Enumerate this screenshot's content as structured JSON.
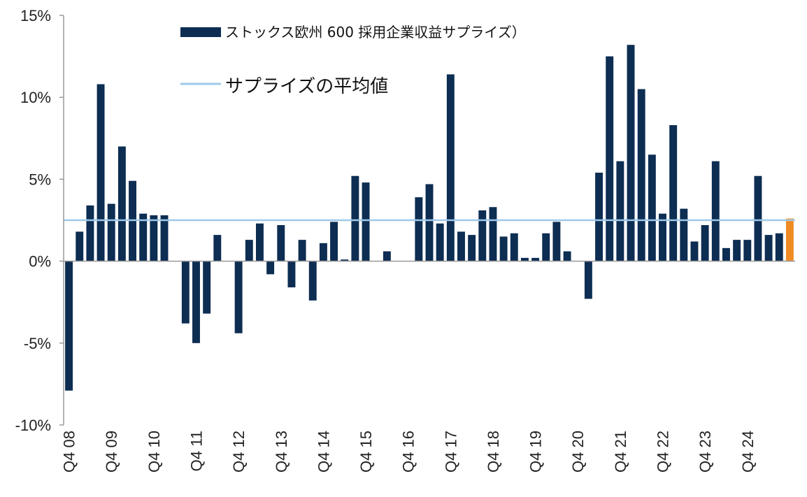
{
  "chart_data": {
    "type": "bar",
    "title": "",
    "xlabel": "",
    "ylabel": "",
    "ylim": [
      -10,
      15
    ],
    "yticks": [
      15,
      10,
      5,
      0,
      -5,
      -10
    ],
    "ytick_labels": [
      "15%",
      "10%",
      "5%",
      "0%",
      "-5%",
      "-10%"
    ],
    "xtick_labels": [
      "Q4 08",
      "Q4 09",
      "Q4 10",
      "Q4 11",
      "Q4 12",
      "Q4 13",
      "Q4 14",
      "Q4 15",
      "Q4 16",
      "Q4 17",
      "Q4 18",
      "Q4 19",
      "Q4 20",
      "Q4 21",
      "Q4 22",
      "Q4 23",
      "Q4 24"
    ],
    "xtick_positions": [
      0,
      4,
      8,
      12,
      16,
      20,
      24,
      28,
      32,
      36,
      40,
      44,
      48,
      52,
      56,
      60,
      64
    ],
    "series": [
      {
        "name": "ストックス欧州 600 採用企業収益サプライズ）",
        "type": "bar",
        "color": "#0d2d52",
        "highlight_color": "#f08a24",
        "highlight_last": true,
        "values": [
          -7.9,
          1.8,
          3.4,
          10.8,
          3.5,
          7.0,
          4.9,
          2.9,
          2.8,
          2.8,
          0.0,
          -3.8,
          -5.0,
          -3.2,
          1.6,
          0.0,
          -4.4,
          1.3,
          2.3,
          -0.8,
          2.2,
          -1.6,
          1.3,
          -2.4,
          1.1,
          2.4,
          0.1,
          5.2,
          4.8,
          0.0,
          0.6,
          0.0,
          0.0,
          3.9,
          4.7,
          2.3,
          11.4,
          1.8,
          1.6,
          3.1,
          3.3,
          1.5,
          1.7,
          0.2,
          0.2,
          1.7,
          2.4,
          0.6,
          0.0,
          -2.3,
          5.4,
          12.5,
          6.1,
          13.2,
          10.5,
          6.5,
          2.9,
          8.3,
          3.2,
          1.2,
          2.2,
          6.1,
          0.8,
          1.3,
          1.3,
          5.2,
          1.6,
          1.7,
          2.6
        ]
      },
      {
        "name": "サプライズの平均値",
        "type": "line",
        "color": "#9ec9ea",
        "value": 2.5
      }
    ],
    "legend_position": "top-center",
    "grid": false
  }
}
